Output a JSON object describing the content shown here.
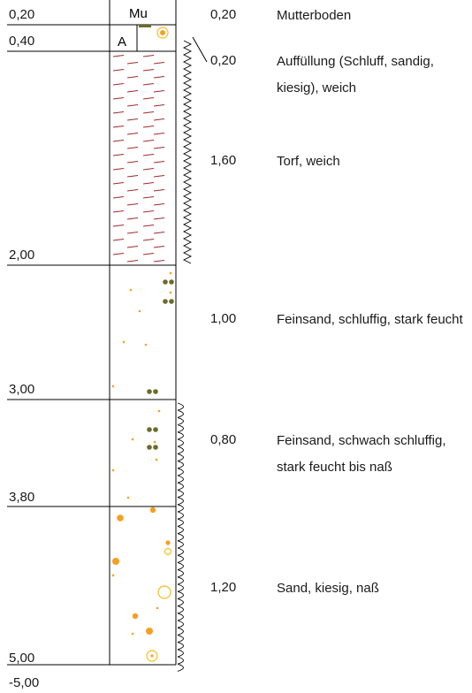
{
  "layers": [
    {
      "top": "0,20",
      "thickness": "0,20",
      "symbol": "Mu",
      "description": "Mutterboden"
    },
    {
      "top": "0,40",
      "thickness": "0,20",
      "symbol": "A",
      "description": "Auffüllung (Schluff, sandig, kiesig), weich"
    },
    {
      "thickness": "1,60",
      "description": "Torf, weich"
    },
    {
      "top": "2,00",
      "thickness": "1,00",
      "description": "Feinsand, schluffig, stark feucht"
    },
    {
      "top": "3,00",
      "thickness": "0,80",
      "description": "Feinsand, schwach schluffig, stark feucht bis naß"
    },
    {
      "top": "3,80",
      "thickness": "1,20",
      "description": "Sand, kiesig, naß"
    }
  ],
  "base": {
    "depth": "5,00",
    "elevation": "-5,00"
  },
  "colors": {
    "line": "#000000",
    "peat": "#a0282d",
    "dot": "#f5a020",
    "gravel": "#6b6b2a",
    "circle": "#f0c020"
  }
}
